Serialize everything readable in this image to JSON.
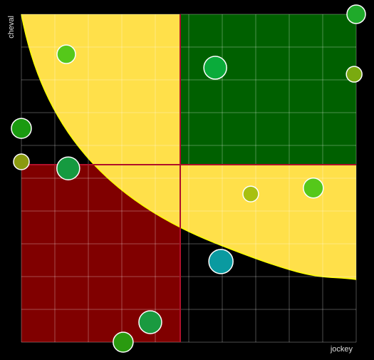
{
  "chart_data": {
    "type": "scatter",
    "x_label": "jockey",
    "y_label": "cheval",
    "xlim": [
      0,
      10
    ],
    "ylim": [
      0,
      10
    ],
    "xticks": [
      0,
      1,
      2,
      3,
      4,
      5,
      6,
      7,
      8,
      9,
      10
    ],
    "yticks": [
      0,
      1,
      2,
      3,
      4,
      5,
      6,
      7,
      8,
      9,
      10
    ],
    "grid": true,
    "x": [
      10,
      1.34,
      5.79,
      9.94,
      0,
      0,
      1.4,
      6.85,
      8.72,
      5.96,
      3.85,
      3.04
    ],
    "values": [
      10,
      8.78,
      8.37,
      8.17,
      6.52,
      5.5,
      5.3,
      4.52,
      4.7,
      2.46,
      0.61,
      0
    ],
    "sizes": [
      13,
      13,
      16,
      11,
      14,
      11,
      16,
      11,
      14,
      17,
      16,
      14
    ],
    "colors": [
      "#1faa2a",
      "#55c81a",
      "#0aab3a",
      "#7aaa10",
      "#1a9a10",
      "#8a9a10",
      "#159a40",
      "#a8c010",
      "#55c81a",
      "#0a9aa0",
      "#1a9a40",
      "#2a9a10"
    ]
  }
}
